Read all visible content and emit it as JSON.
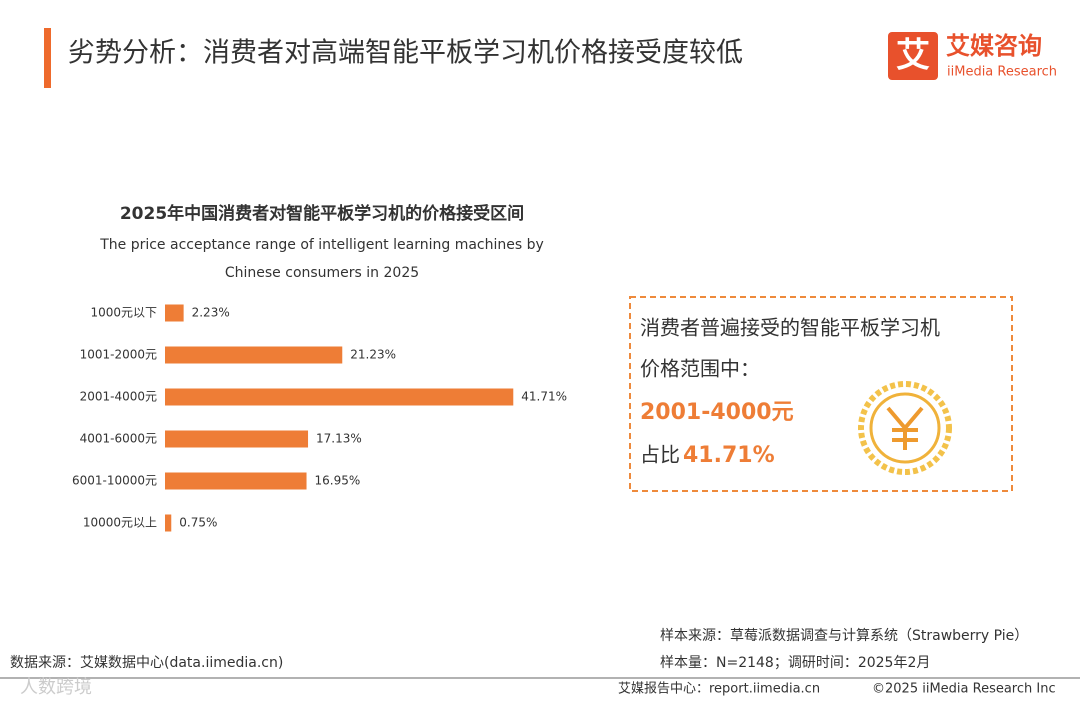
{
  "header": {
    "title": "劣势分析：消费者对高端智能平板学习机价格接受度较低",
    "logo_cn": "艾媒咨询",
    "logo_en": "iiMedia Research",
    "logo_mark": "艾"
  },
  "chart_data": {
    "type": "barh",
    "title": "2025年中国消费者对智能平板学习机的价格接受区间",
    "subtitle": [
      "The price acceptance range of intelligent learning machines by",
      "Chinese consumers in 2025"
    ],
    "categories": [
      "1000元以下",
      "1001-2000元",
      "2001-4000元",
      "4001-6000元",
      "6001-10000元",
      "10000元以上"
    ],
    "values": [
      2.23,
      21.23,
      41.71,
      17.13,
      16.95,
      0.75
    ],
    "value_labels": [
      "2.23%",
      "21.23%",
      "41.71%",
      "17.13%",
      "16.95%",
      "0.75%"
    ],
    "color": "#ee7d36"
  },
  "callout": {
    "line1": "消费者普遍接受的智能平板学习机",
    "line2": "价格范围中：",
    "range": "2001-4000元",
    "share_prefix": "占比",
    "share": "41.71%"
  },
  "footer": {
    "sample_source": "样本来源：草莓派数据调查与计算系统（Strawberry Pie）",
    "sample_size": "样本量：N=2148；调研时间：2025年2月",
    "data_source": "数据来源：艾媒数据中心(data.iimedia.cn)",
    "report_center": "艾媒报告中心：report.iimedia.cn",
    "copyright": "©2025  iiMedia Research  Inc",
    "watermark": "人数跨境"
  }
}
